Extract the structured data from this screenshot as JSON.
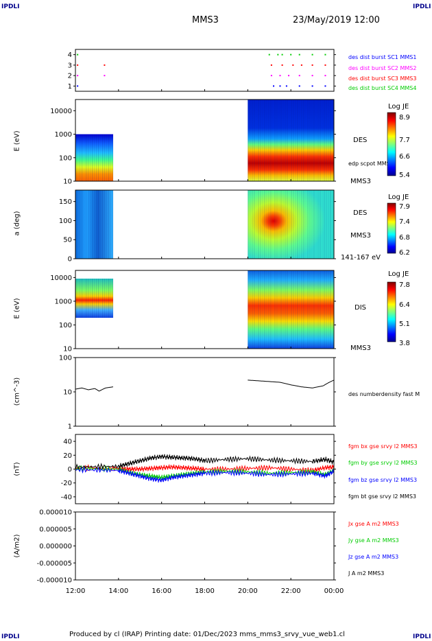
{
  "header": {
    "corner_left_top": "IPDLI",
    "corner_right_top": "IPDLI",
    "corner_left_bottom": "IPDLI",
    "corner_right_bottom": "IPDLI",
    "spacecraft": "MMS3",
    "datetime": "23/May/2019 12:00"
  },
  "footer": {
    "text": "Produced by cl (IRAP)   Printing date: 01/Dec/2023   mms_mms3_srvy_vue_web1.cl"
  },
  "time_axis": {
    "ticks": [
      "12:00",
      "14:00",
      "16:00",
      "18:00",
      "20:00",
      "22:00",
      "00:00"
    ],
    "range_hours": [
      0,
      12
    ]
  },
  "chart_data": [
    {
      "type": "scatter",
      "panel": "burst-availability",
      "yticks": [
        "1",
        "2",
        "3",
        "4"
      ],
      "ylim": [
        0.5,
        4.5
      ],
      "legend_placement": "right",
      "series": [
        {
          "name": "des dist burst SC1 MMS1",
          "color": "#0000ff",
          "y": 1,
          "x": [
            0.1,
            9.2,
            9.5,
            9.8,
            10.4,
            11.0,
            11.6
          ]
        },
        {
          "name": "des dist burst SC2 MMS2",
          "color": "#ff00ff",
          "y": 2,
          "x": [
            0.1,
            1.35,
            9.1,
            9.5,
            9.9,
            10.4,
            11.0,
            11.6
          ]
        },
        {
          "name": "des dist burst SC3 MMS3",
          "color": "#ff0000",
          "y": 3,
          "x": [
            0.1,
            1.35,
            9.1,
            9.6,
            10.1,
            10.5,
            11.0,
            11.6
          ]
        },
        {
          "name": "des dist burst SC4 MMS4",
          "color": "#00cc00",
          "y": 4,
          "x": [
            0.1,
            9.0,
            9.4,
            9.6,
            10.0,
            10.4,
            11.0,
            11.6
          ]
        }
      ]
    },
    {
      "type": "heatmap",
      "panel": "des-energy",
      "ylabel": "E (eV)",
      "yscale": "log",
      "ylim": [
        10,
        30000
      ],
      "yticks": [
        "10",
        "100",
        "1000",
        "10000"
      ],
      "colorbar": {
        "title": "Log JE",
        "ticks": [
          "8.9",
          "7.7",
          "6.6",
          "5.4"
        ],
        "range": [
          5.4,
          8.9
        ]
      },
      "side_labels": [
        "DES",
        "edp scpot MMS3",
        "MMS3"
      ],
      "data_intervals_hours": [
        [
          0,
          1.75
        ],
        [
          8.0,
          12.0
        ]
      ]
    },
    {
      "type": "heatmap",
      "panel": "des-pitch-angle",
      "ylabel": "a (deg)",
      "ylim": [
        0,
        180
      ],
      "yticks": [
        "0",
        "50",
        "100",
        "150"
      ],
      "colorbar": {
        "title": "Log JE",
        "ticks": [
          "7.9",
          "7.4",
          "6.8",
          "6.2"
        ],
        "range": [
          6.2,
          7.9
        ]
      },
      "side_labels": [
        "DES",
        "MMS3",
        "141-167 eV"
      ],
      "data_intervals_hours": [
        [
          0,
          1.75
        ],
        [
          8.0,
          12.0
        ]
      ]
    },
    {
      "type": "heatmap",
      "panel": "dis-energy",
      "ylabel": "E (eV)",
      "yscale": "log",
      "ylim": [
        10,
        20000
      ],
      "yticks": [
        "10",
        "100",
        "1000",
        "10000"
      ],
      "colorbar": {
        "title": "Log JE",
        "ticks": [
          "7.8",
          "6.4",
          "5.1",
          "3.8"
        ],
        "range": [
          3.8,
          7.8
        ]
      },
      "side_labels": [
        "DIS",
        "MMS3"
      ],
      "data_intervals_hours": [
        [
          0,
          1.75
        ],
        [
          8.0,
          12.0
        ]
      ]
    },
    {
      "type": "line",
      "panel": "density",
      "ylabel": "(cm^-3)",
      "yscale": "log",
      "ylim": [
        1,
        100
      ],
      "yticks": [
        "1",
        "10",
        "100"
      ],
      "series": [
        {
          "name": "des numberdensity fast M",
          "color": "#000000",
          "x": [
            0.0,
            0.3,
            0.6,
            0.9,
            1.1,
            1.4,
            1.75,
            8.0,
            8.5,
            9.0,
            9.5,
            10.0,
            10.5,
            11.0,
            11.5,
            12.0
          ],
          "y": [
            12,
            13,
            11.5,
            12.5,
            10.5,
            13,
            14,
            22,
            21,
            20,
            19,
            16,
            14,
            13,
            15,
            22
          ]
        }
      ]
    },
    {
      "type": "line",
      "panel": "magnetic-field",
      "ylabel": "(nT)",
      "ylim": [
        -50,
        50
      ],
      "yticks": [
        "40",
        "20",
        "0",
        "-20",
        "-40"
      ],
      "series": [
        {
          "name": "fgm bx gse srvy l2 MMS3",
          "color": "#ff0000",
          "x": [
            0,
            2,
            2.5,
            3,
            3.5,
            4,
            4.5,
            5,
            5.5,
            6,
            7,
            8,
            9,
            10,
            11,
            11.6,
            12
          ],
          "y": [
            2,
            1,
            0,
            0,
            1,
            2,
            3,
            2,
            1,
            0,
            0,
            1,
            2,
            0,
            -2,
            2,
            3
          ]
        },
        {
          "name": "fgm by gse srvy l2 MMS3",
          "color": "#00cc00",
          "x": [
            0,
            2,
            2.5,
            3,
            3.5,
            4,
            4.5,
            5,
            5.5,
            6,
            7,
            8,
            9,
            10,
            11,
            11.6,
            12
          ],
          "y": [
            1,
            0,
            -5,
            -8,
            -10,
            -12,
            -10,
            -8,
            -6,
            -4,
            -3,
            -4,
            -6,
            -5,
            -4,
            -8,
            -2
          ]
        },
        {
          "name": "fgm bz gse srvy l2 MMS3",
          "color": "#0000ff",
          "x": [
            0,
            2,
            2.5,
            3,
            3.5,
            4,
            4.5,
            5,
            5.5,
            6,
            7,
            8,
            9,
            10,
            11,
            11.6,
            12
          ],
          "y": [
            -1,
            -2,
            -6,
            -10,
            -14,
            -16,
            -12,
            -10,
            -8,
            -6,
            -5,
            -6,
            -8,
            -7,
            -6,
            -10,
            -3
          ]
        },
        {
          "name": "fgm bt gse srvy l2 MMS3",
          "color": "#000000",
          "x": [
            0,
            2,
            2.5,
            3,
            3.5,
            4,
            4.5,
            5,
            5.5,
            6,
            7,
            8,
            9,
            10,
            11,
            11.6,
            12
          ],
          "y": [
            3,
            4,
            8,
            12,
            16,
            18,
            17,
            16,
            15,
            12,
            14,
            15,
            13,
            12,
            11,
            14,
            10
          ]
        }
      ]
    },
    {
      "type": "line",
      "panel": "current-density",
      "ylabel": "(A/m2)",
      "ylim": [
        -1e-05,
        1e-05
      ],
      "yticks": [
        "0.000010",
        "0.000005",
        "0.000000",
        "-0.000005",
        "-0.000010"
      ],
      "series": [
        {
          "name": "Jx gse A m2 MMS3",
          "color": "#ff0000",
          "x": [
            0,
            12
          ],
          "y": [
            0,
            0
          ]
        },
        {
          "name": "Jy gse A m2 MMS3",
          "color": "#00cc00",
          "x": [
            0,
            12
          ],
          "y": [
            0,
            0
          ]
        },
        {
          "name": "Jz gse A m2 MMS3",
          "color": "#0000ff",
          "x": [
            0,
            12
          ],
          "y": [
            0,
            0
          ]
        },
        {
          "name": "J A m2 MMS3",
          "color": "#000000",
          "x": [
            0,
            12
          ],
          "y": [
            0,
            0
          ]
        }
      ]
    }
  ]
}
